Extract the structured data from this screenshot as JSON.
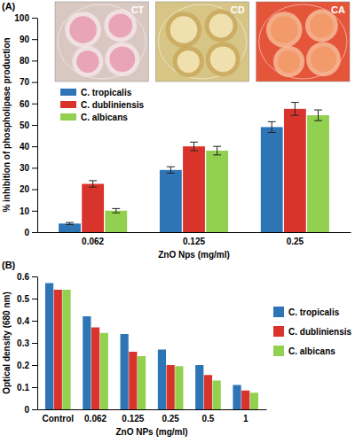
{
  "chart_data": [
    {
      "type": "bar",
      "title": "(A)",
      "y_label": "% inhibition of phospholipase production",
      "x_label": "ZnO Nps (mg/ml)",
      "categories": [
        "0.062",
        "0.125",
        "0.25"
      ],
      "series": [
        {
          "name": "C. tropicalis",
          "color": "#2e75b6",
          "values": [
            4,
            29,
            49
          ],
          "errors": [
            0.5,
            1.5,
            2.5
          ]
        },
        {
          "name": "C. dubliniensis",
          "color": "#d9342b",
          "values": [
            22.5,
            40,
            57.5
          ],
          "errors": [
            1.5,
            2,
            3
          ]
        },
        {
          "name": "C. albicans",
          "color": "#92d050",
          "values": [
            10,
            38,
            54.5
          ],
          "errors": [
            1,
            2,
            2.5
          ]
        }
      ],
      "ylim": [
        0,
        100
      ],
      "yticks": [
        0,
        10,
        20,
        30,
        40,
        50,
        60,
        70,
        80,
        90,
        100
      ],
      "legend": "upper left",
      "annotations": [
        "CT",
        "CD",
        "CA"
      ]
    },
    {
      "type": "bar",
      "title": "(B)",
      "y_label": "Optical density (680 nm)",
      "x_label": "ZnO NPs (mg/ml)",
      "categories": [
        "Control",
        "0.062",
        "0.125",
        "0.25",
        "0.5",
        "1"
      ],
      "series": [
        {
          "name": "C. tropicalis",
          "color": "#2e75b6",
          "values": [
            0.57,
            0.42,
            0.34,
            0.27,
            0.2,
            0.11
          ]
        },
        {
          "name": "C. dubliniensis",
          "color": "#d9342b",
          "values": [
            0.54,
            0.37,
            0.26,
            0.2,
            0.155,
            0.085
          ]
        },
        {
          "name": "C. albicans",
          "color": "#92d050",
          "values": [
            0.54,
            0.345,
            0.24,
            0.195,
            0.13,
            0.075
          ]
        }
      ],
      "ylim": [
        0,
        0.6
      ],
      "yticks": [
        0,
        0.1,
        0.2,
        0.3,
        0.4,
        0.5,
        0.6
      ],
      "legend": "right"
    }
  ]
}
